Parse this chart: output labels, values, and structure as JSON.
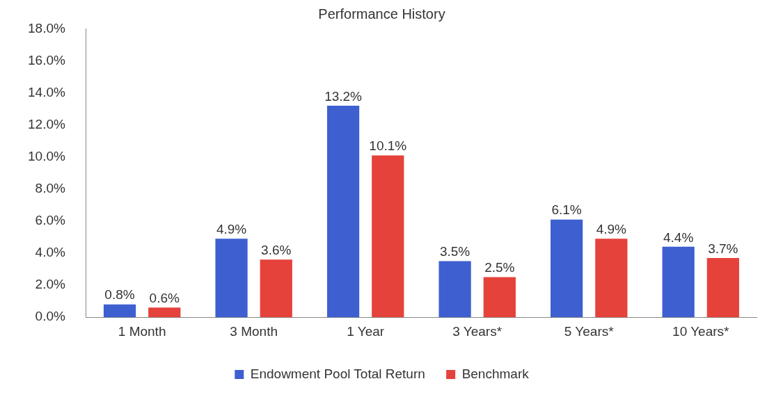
{
  "chart_data": {
    "type": "bar",
    "title": "Performance History",
    "categories": [
      "1 Month",
      "3 Month",
      "1 Year",
      "3 Years*",
      "5 Years*",
      "10 Years*"
    ],
    "series": [
      {
        "name": "Endowment Pool Total Return",
        "color": "#3d5fd0",
        "values": [
          0.8,
          4.9,
          13.2,
          3.5,
          6.1,
          4.4
        ],
        "value_labels": [
          "0.8%",
          "4.9%",
          "13.2%",
          "3.5%",
          "6.1%",
          "4.4%"
        ]
      },
      {
        "name": "Benchmark",
        "color": "#e5423b",
        "values": [
          0.6,
          3.6,
          10.1,
          2.5,
          4.9,
          3.7
        ],
        "value_labels": [
          "0.6%",
          "3.6%",
          "10.1%",
          "2.5%",
          "4.9%",
          "3.7%"
        ]
      }
    ],
    "ylim": [
      0,
      18
    ],
    "yticks": [
      {
        "value": 0,
        "label": "0.0%"
      },
      {
        "value": 2,
        "label": "2.0%"
      },
      {
        "value": 4,
        "label": "4.0%"
      },
      {
        "value": 6,
        "label": "6.0%"
      },
      {
        "value": 8,
        "label": "8.0%"
      },
      {
        "value": 10,
        "label": "10.0%"
      },
      {
        "value": 12,
        "label": "12.0%"
      },
      {
        "value": 14,
        "label": "14.0%"
      },
      {
        "value": 16,
        "label": "16.0%"
      },
      {
        "value": 18,
        "label": "18.0%"
      }
    ],
    "grid": false,
    "legend": "bottom"
  }
}
